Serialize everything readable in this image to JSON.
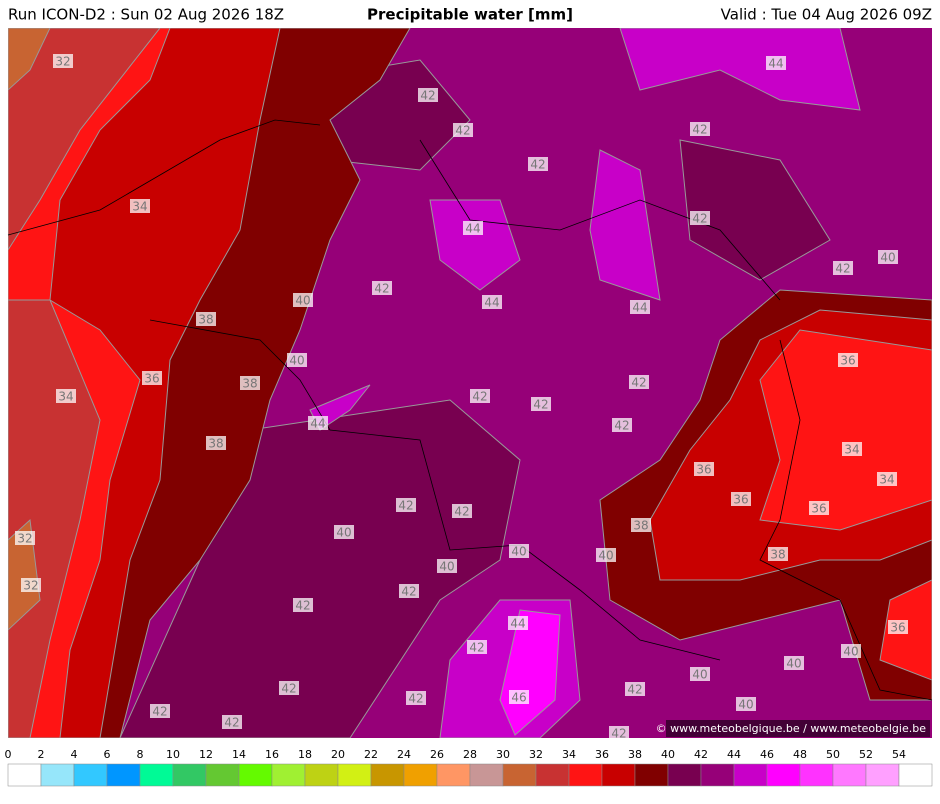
{
  "header": {
    "run": "Run ICON-D2 : Sun 02 Aug 2026 18Z",
    "title": "Precipitable water [mm]",
    "valid": "Valid : Tue 04 Aug 2026 09Z"
  },
  "map": {
    "contour_labels": [
      32,
      44,
      42,
      42,
      42,
      42,
      34,
      44,
      42,
      40,
      42,
      42,
      40,
      44,
      44,
      38,
      36,
      40,
      36,
      38,
      42,
      34,
      42,
      42,
      44,
      42,
      34,
      38,
      36,
      34,
      36,
      42,
      42,
      36,
      38,
      32,
      40,
      40,
      40,
      38,
      40,
      42,
      32,
      42,
      44,
      36,
      42,
      40,
      40,
      40,
      42,
      42,
      46,
      42,
      40,
      42,
      42,
      42
    ],
    "credit": "© www.meteobelgique.be / www.meteobelgie.be"
  },
  "colorbar": {
    "ticks": [
      0,
      2,
      4,
      6,
      8,
      10,
      12,
      14,
      16,
      18,
      20,
      22,
      24,
      26,
      28,
      30,
      32,
      34,
      36,
      38,
      40,
      42,
      44,
      46,
      48,
      50,
      52,
      54
    ],
    "colors": [
      "#ffffff",
      "#96e6fa",
      "#32c8ff",
      "#0096ff",
      "#00fa96",
      "#32c864",
      "#64c832",
      "#64fa00",
      "#a0f032",
      "#bed214",
      "#d2f014",
      "#c89600",
      "#f0a000",
      "#ff9664",
      "#c89696",
      "#c86432",
      "#c83232",
      "#ff1414",
      "#c80000",
      "#800000",
      "#780050",
      "#960078",
      "#c800c8",
      "#ff00ff",
      "#ff32ff",
      "#ff78ff",
      "#ffa0ff",
      "#ffffff"
    ]
  }
}
